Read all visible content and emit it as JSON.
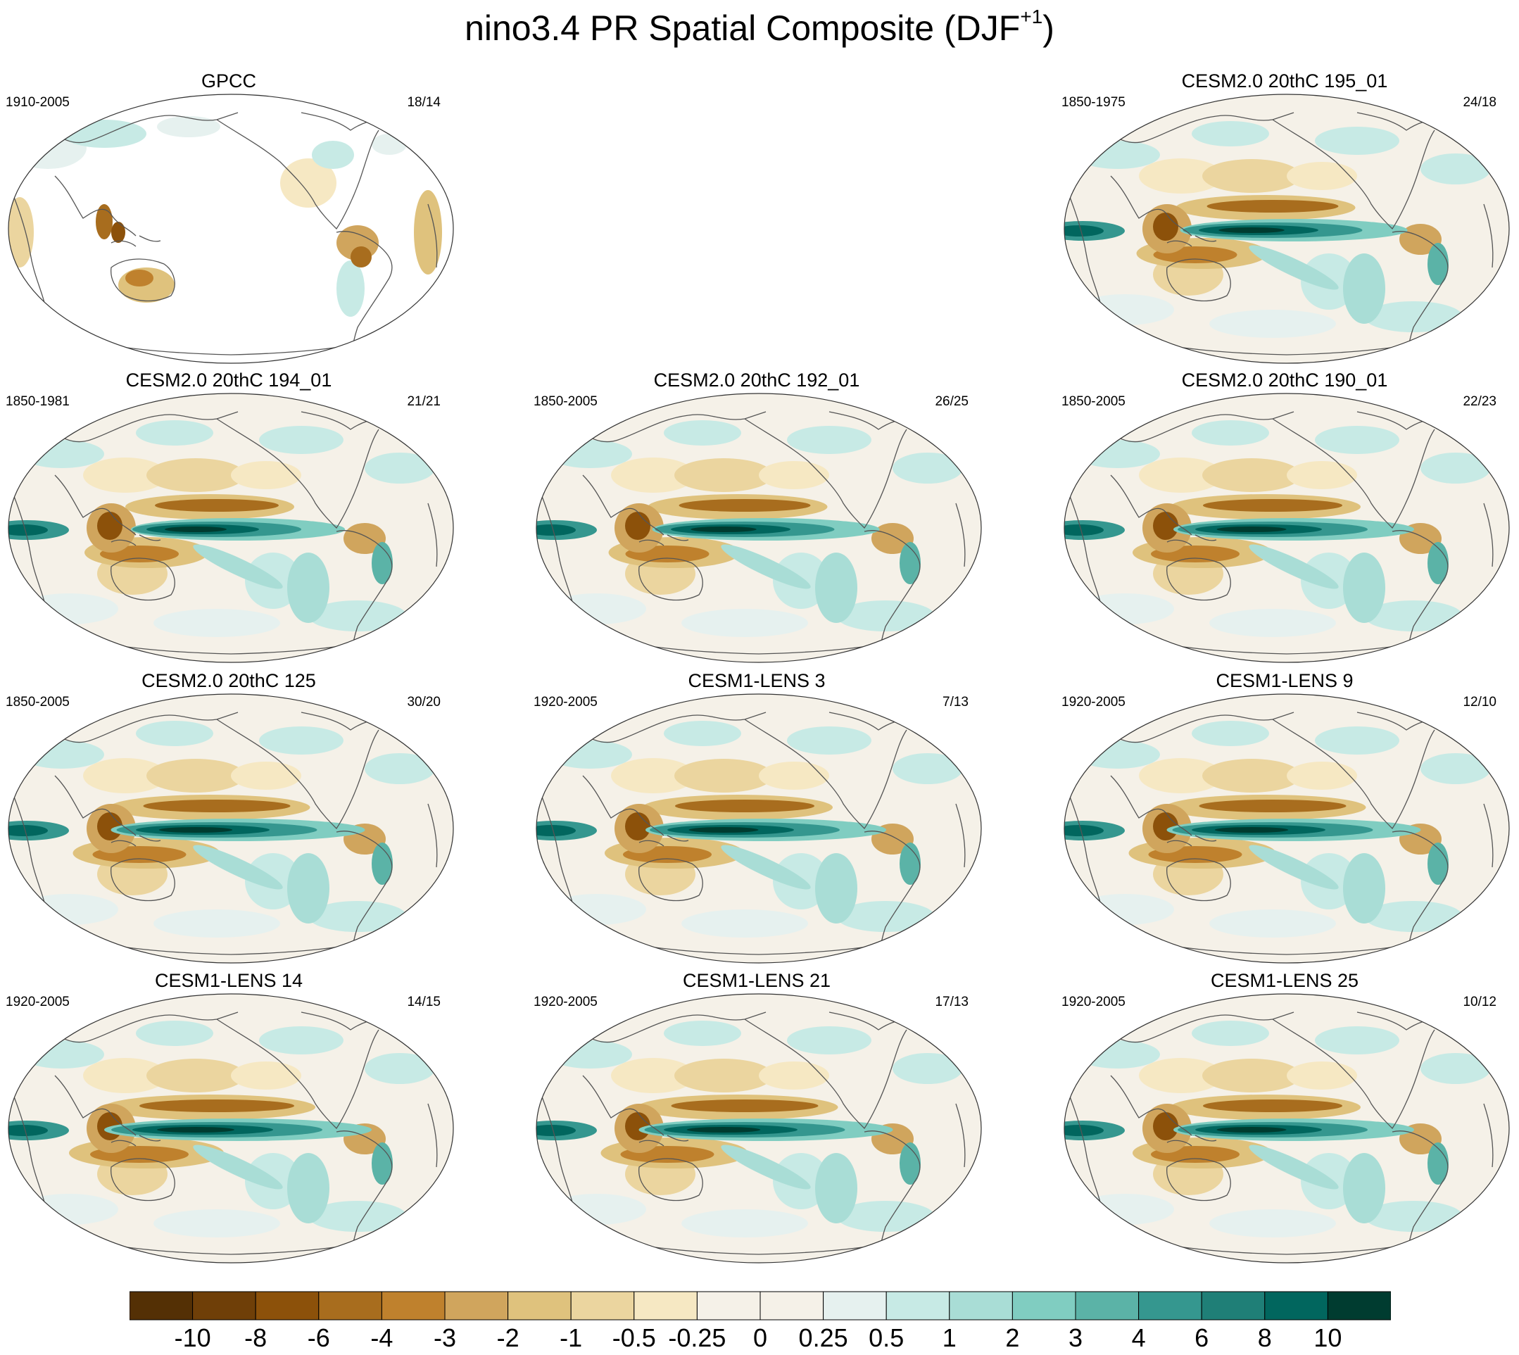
{
  "figure": {
    "title": "nino3.4 PR Spatial Composite (DJF",
    "title_superscript": "+1",
    "title_close": ")"
  },
  "colorbar": {
    "labels": [
      "-10",
      "-8",
      "-6",
      "-4",
      "-3",
      "-2",
      "-1",
      "-0.5",
      "-0.25",
      "0",
      "0.25",
      "0.5",
      "1",
      "2",
      "3",
      "4",
      "6",
      "8",
      "10"
    ],
    "colors": [
      "#543005",
      "#6f3f08",
      "#8c510a",
      "#a86d1e",
      "#bf812d",
      "#d0a55d",
      "#dfc27d",
      "#ebd59f",
      "#f6e8c3",
      "#f5f1e8",
      "#e6f1ef",
      "#c7eae5",
      "#a9ddd6",
      "#80cdc1",
      "#5bb3a7",
      "#35978f",
      "#1f7f77",
      "#01665e",
      "#003c30"
    ]
  },
  "panels": [
    {
      "id": "gpcc",
      "title": "GPCC",
      "years": "1910-2005",
      "counts": "18/14",
      "kind": "obs"
    },
    {
      "id": "cesm2-195",
      "title": "CESM2.0 20thC 195_01",
      "years": "1850-1975",
      "counts": "24/18",
      "kind": "model",
      "strength": 0.85
    },
    {
      "id": "cesm2-194",
      "title": "CESM2.0 20thC 194_01",
      "years": "1850-1981",
      "counts": "21/21",
      "kind": "model",
      "strength": 0.8
    },
    {
      "id": "cesm2-192",
      "title": "CESM2.0 20thC 192_01",
      "years": "1850-2005",
      "counts": "26/25",
      "kind": "model",
      "strength": 0.85
    },
    {
      "id": "cesm2-190",
      "title": "CESM2.0 20thC 190_01",
      "years": "1850-2005",
      "counts": "22/23",
      "kind": "model",
      "strength": 0.9
    },
    {
      "id": "cesm2-125",
      "title": "CESM2.0 20thC 125",
      "years": "1850-2005",
      "counts": "30/20",
      "kind": "model",
      "strength": 0.95
    },
    {
      "id": "lens-3",
      "title": "CESM1-LENS 3",
      "years": "1920-2005",
      "counts": "7/13",
      "kind": "model",
      "strength": 0.9
    },
    {
      "id": "lens-9",
      "title": "CESM1-LENS 9",
      "years": "1920-2005",
      "counts": "12/10",
      "kind": "model",
      "strength": 0.95
    },
    {
      "id": "lens-14",
      "title": "CESM1-LENS 14",
      "years": "1920-2005",
      "counts": "14/15",
      "kind": "model",
      "strength": 1.0
    },
    {
      "id": "lens-21",
      "title": "CESM1-LENS 21",
      "years": "1920-2005",
      "counts": "17/13",
      "kind": "model",
      "strength": 0.95
    },
    {
      "id": "lens-25",
      "title": "CESM1-LENS 25",
      "years": "1920-2005",
      "counts": "10/12",
      "kind": "model",
      "strength": 0.9
    }
  ]
}
